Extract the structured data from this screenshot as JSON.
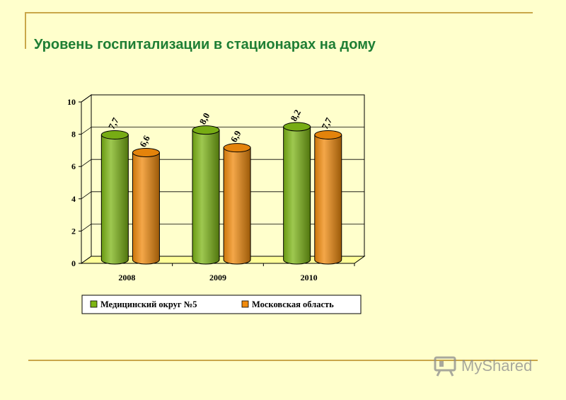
{
  "page": {
    "title": "Уровень госпитализации в стационарах на дому"
  },
  "watermark": {
    "text": "MyShared",
    "icon": "presentation-board-icon"
  },
  "colors": {
    "background": "#FFFFCC",
    "accent_line": "#C9A74A",
    "title": "#1E7E34",
    "series_1": "#7DB515",
    "series_2": "#F08A0C"
  },
  "chart_data": {
    "type": "bar",
    "style": "3d-cylinder",
    "categories": [
      "2008",
      "2009",
      "2010"
    ],
    "series": [
      {
        "name": "Медицинский округ №5",
        "values": [
          7.7,
          8.0,
          8.2
        ],
        "labels": [
          "7,7",
          "8,0",
          "8,2"
        ],
        "color": "#7DB515"
      },
      {
        "name": "Московская область",
        "values": [
          6.6,
          6.9,
          7.7
        ],
        "labels": [
          "6,6",
          "6,9",
          "7,7"
        ],
        "color": "#F08A0C"
      }
    ],
    "ylim": [
      0,
      10
    ],
    "yticks": [
      "0",
      "2",
      "4",
      "6",
      "8",
      "10"
    ],
    "grid": true,
    "legend": "bottom"
  }
}
